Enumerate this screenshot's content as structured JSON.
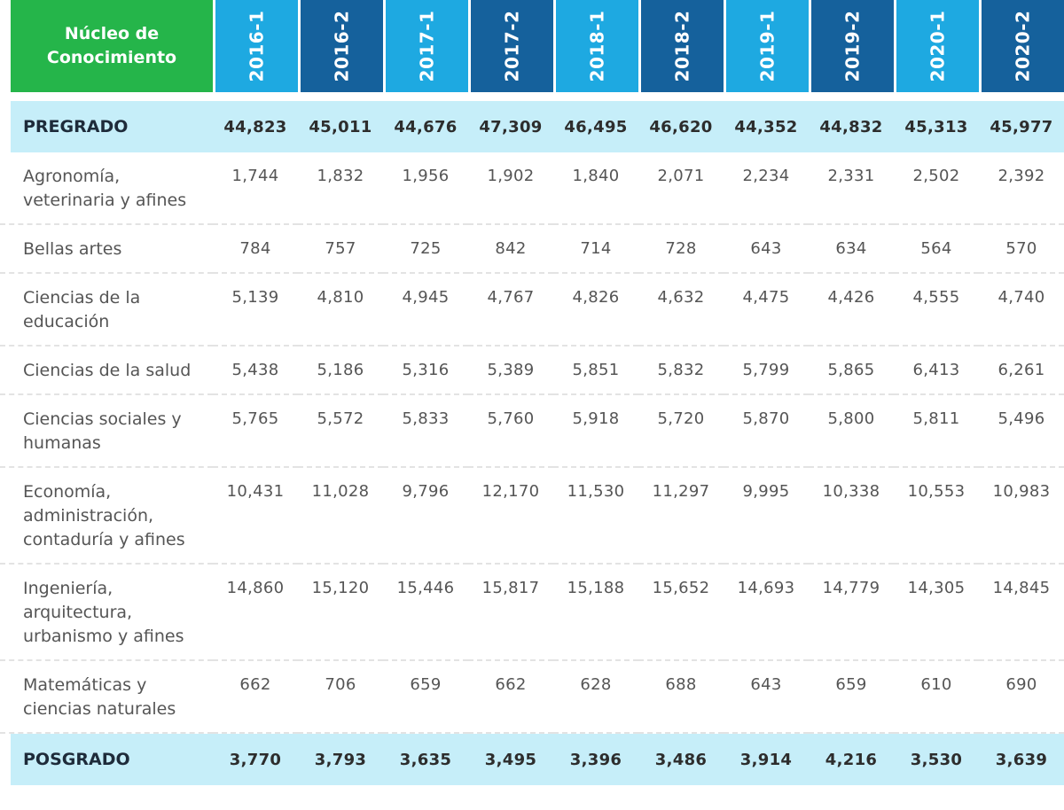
{
  "table": {
    "corner_label": "Núcleo de Conocimiento",
    "periods": [
      "2016-1",
      "2016-2",
      "2017-1",
      "2017-2",
      "2018-1",
      "2018-2",
      "2019-1",
      "2019-2",
      "2020-1",
      "2020-2"
    ],
    "header_colors": [
      "#1ea9e1",
      "#15619c",
      "#1ea9e1",
      "#15619c",
      "#1ea9e1",
      "#15619c",
      "#1ea9e1",
      "#15619c",
      "#1ea9e1",
      "#15619c"
    ],
    "corner_color": "#25b54a",
    "aggregate_row_color": "#c6eef9",
    "rows": [
      {
        "type": "aggregate",
        "label": "PREGRADO",
        "values": [
          "44,823",
          "45,011",
          "44,676",
          "47,309",
          "46,495",
          "46,620",
          "44,352",
          "44,832",
          "45,313",
          "45,977"
        ]
      },
      {
        "type": "detail",
        "label": "Agronomía, veterinaria y afines",
        "values": [
          "1,744",
          "1,832",
          "1,956",
          "1,902",
          "1,840",
          "2,071",
          "2,234",
          "2,331",
          "2,502",
          "2,392"
        ]
      },
      {
        "type": "detail",
        "label": "Bellas artes",
        "values": [
          "784",
          "757",
          "725",
          "842",
          "714",
          "728",
          "643",
          "634",
          "564",
          "570"
        ]
      },
      {
        "type": "detail",
        "label": "Ciencias de la educación",
        "values": [
          "5,139",
          "4,810",
          "4,945",
          "4,767",
          "4,826",
          "4,632",
          "4,475",
          "4,426",
          "4,555",
          "4,740"
        ]
      },
      {
        "type": "detail",
        "label": "Ciencias de la salud",
        "values": [
          "5,438",
          "5,186",
          "5,316",
          "5,389",
          "5,851",
          "5,832",
          "5,799",
          "5,865",
          "6,413",
          "6,261"
        ]
      },
      {
        "type": "detail",
        "label": "Ciencias sociales y humanas",
        "values": [
          "5,765",
          "5,572",
          "5,833",
          "5,760",
          "5,918",
          "5,720",
          "5,870",
          "5,800",
          "5,811",
          "5,496"
        ]
      },
      {
        "type": "detail",
        "label": "Economía, administración, contaduría y afines",
        "values": [
          "10,431",
          "11,028",
          "9,796",
          "12,170",
          "11,530",
          "11,297",
          "9,995",
          "10,338",
          "10,553",
          "10,983"
        ]
      },
      {
        "type": "detail",
        "label": "Ingeniería, arquitectura, urbanismo y afines",
        "values": [
          "14,860",
          "15,120",
          "15,446",
          "15,817",
          "15,188",
          "15,652",
          "14,693",
          "14,779",
          "14,305",
          "14,845"
        ]
      },
      {
        "type": "detail",
        "label": "Matemáticas y ciencias naturales",
        "values": [
          "662",
          "706",
          "659",
          "662",
          "628",
          "688",
          "643",
          "659",
          "610",
          "690"
        ]
      },
      {
        "type": "aggregate",
        "label": "POSGRADO",
        "values": [
          "3,770",
          "3,793",
          "3,635",
          "3,495",
          "3,396",
          "3,486",
          "3,914",
          "4,216",
          "3,530",
          "3,639"
        ]
      }
    ]
  }
}
